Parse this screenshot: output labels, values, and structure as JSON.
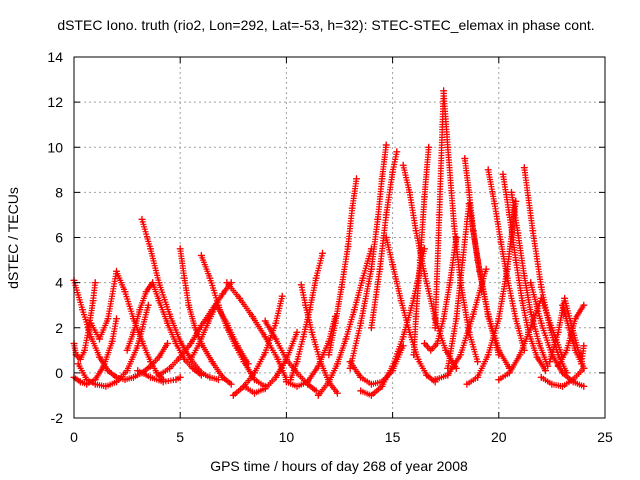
{
  "chart_data": {
    "type": "scatter",
    "title": "dSTEC Iono. truth (rio2, Lon=292, Lat=-53, h=32): STEC-STEC_elemax in phase cont.",
    "xlabel": "GPS time / hours of day 268 of year 2008",
    "ylabel": "dSTEC  / TECUs",
    "xlim": [
      0,
      25
    ],
    "ylim": [
      -2,
      14
    ],
    "xticks": [
      "0",
      "5",
      "10",
      "15",
      "20",
      "25"
    ],
    "yticks": [
      "-2",
      "0",
      "2",
      "4",
      "6",
      "8",
      "10",
      "12",
      "14"
    ],
    "grid": true,
    "marker": "plus",
    "color": "#ff0000",
    "series": [
      {
        "x": [
          0.0,
          0.4,
          0.8,
          1.2,
          1.6,
          2.0,
          2.4,
          2.8,
          3.2,
          3.6,
          4.0,
          4.4
        ],
        "y": [
          4.1,
          2.8,
          1.6,
          0.7,
          0.1,
          -0.2,
          -0.3,
          -0.2,
          0.0,
          0.3,
          0.7,
          1.3
        ]
      },
      {
        "x": [
          0.0,
          0.1,
          0.3,
          0.5,
          0.7,
          0.9,
          1.0
        ],
        "y": [
          1.3,
          0.8,
          0.6,
          1.0,
          2.0,
          3.2,
          4.0
        ]
      },
      {
        "x": [
          0.0,
          0.3,
          0.6,
          1.0,
          1.4,
          1.8,
          2.0
        ],
        "y": [
          -0.2,
          -0.4,
          -0.5,
          -0.3,
          0.3,
          1.4,
          2.4
        ]
      },
      {
        "x": [
          0.8,
          1.2,
          1.6,
          2.0,
          2.4,
          2.8,
          3.2,
          3.6,
          3.9,
          4.2
        ],
        "y": [
          2.2,
          1.5,
          2.4,
          4.5,
          3.6,
          2.4,
          1.4,
          0.5,
          0.0,
          -0.3
        ]
      },
      {
        "x": [
          0.2,
          0.6,
          1.0,
          1.5,
          2.0,
          2.5,
          3.0,
          3.5
        ],
        "y": [
          0.4,
          -0.3,
          -0.5,
          -0.6,
          -0.4,
          0.1,
          1.2,
          3.0
        ]
      },
      {
        "x": [
          2.5,
          2.8,
          3.1,
          3.4,
          3.7,
          4.0,
          4.4,
          4.8,
          5.2,
          5.6,
          6.0
        ],
        "y": [
          1.0,
          1.8,
          2.8,
          3.6,
          4.0,
          3.2,
          2.2,
          1.3,
          0.6,
          0.2,
          -0.1
        ]
      },
      {
        "x": [
          3.2,
          3.6,
          4.0,
          4.5,
          5.0,
          5.5,
          6.0,
          6.4,
          6.8
        ],
        "y": [
          6.8,
          5.5,
          4.0,
          2.6,
          1.4,
          0.6,
          0.0,
          -0.2,
          -0.3
        ]
      },
      {
        "x": [
          3.0,
          3.6,
          4.2,
          4.8,
          5.0
        ],
        "y": [
          0.1,
          -0.2,
          -0.4,
          -0.3,
          -0.2
        ]
      },
      {
        "x": [
          4.0,
          4.5,
          5.0,
          5.5,
          6.0,
          6.5,
          7.0,
          7.4
        ],
        "y": [
          -0.1,
          0.2,
          0.7,
          1.3,
          2.1,
          2.8,
          3.5,
          4.0
        ]
      },
      {
        "x": [
          5.0,
          5.2,
          5.4,
          5.7,
          6.0,
          6.5,
          7.0,
          7.4
        ],
        "y": [
          5.5,
          4.2,
          3.0,
          2.0,
          1.3,
          0.5,
          -0.2,
          -0.5
        ]
      },
      {
        "x": [
          5.5,
          5.9,
          6.3,
          6.7,
          7.2,
          7.7,
          8.2
        ],
        "y": [
          0.6,
          1.3,
          2.2,
          3.0,
          2.2,
          1.2,
          0.4
        ]
      },
      {
        "x": [
          6.0,
          6.4,
          6.8,
          7.2,
          7.6,
          8.0,
          8.5,
          9.0
        ],
        "y": [
          5.2,
          4.2,
          3.0,
          2.0,
          1.2,
          0.5,
          -0.3,
          -0.6
        ]
      },
      {
        "x": [
          7.5,
          8.0,
          8.5,
          9.0,
          9.5,
          9.8
        ],
        "y": [
          -1.0,
          -0.6,
          0.0,
          0.9,
          2.2,
          3.4
        ]
      },
      {
        "x": [
          7.2,
          7.8,
          8.4,
          9.0,
          9.6,
          10.0
        ],
        "y": [
          4.0,
          3.3,
          2.5,
          1.6,
          0.6,
          -0.3
        ]
      },
      {
        "x": [
          8.0,
          8.5,
          9.0,
          9.5,
          10.0,
          10.5
        ],
        "y": [
          -0.6,
          -0.9,
          -0.7,
          -0.2,
          0.6,
          1.8
        ]
      },
      {
        "x": [
          9.0,
          9.5,
          10.0,
          10.5,
          11.0,
          11.4
        ],
        "y": [
          2.3,
          1.5,
          0.6,
          0.0,
          -0.5,
          -0.8
        ]
      },
      {
        "x": [
          10.0,
          10.5,
          11.0,
          11.5,
          12.0,
          12.3
        ],
        "y": [
          -0.4,
          -0.6,
          -0.4,
          0.3,
          1.4,
          2.5
        ]
      },
      {
        "x": [
          10.7,
          10.9,
          11.2,
          11.6,
          12.0,
          12.4
        ],
        "y": [
          3.9,
          3.0,
          1.8,
          0.5,
          -0.4,
          -0.9
        ]
      },
      {
        "x": [
          10.2,
          10.5,
          10.8,
          11.1,
          11.4,
          11.7
        ],
        "y": [
          -0.3,
          0.5,
          1.6,
          2.8,
          4.2,
          5.3
        ]
      },
      {
        "x": [
          11.5,
          12.0,
          12.4,
          12.8,
          13.2,
          13.6,
          14.0
        ],
        "y": [
          -1.0,
          -0.4,
          0.4,
          1.5,
          2.8,
          4.2,
          5.5
        ]
      },
      {
        "x": [
          12.0,
          12.3,
          12.6,
          12.9,
          13.1,
          13.3
        ],
        "y": [
          0.8,
          2.2,
          3.8,
          5.6,
          7.3,
          8.6
        ]
      },
      {
        "x": [
          13.0,
          13.5,
          14.0,
          14.3,
          14.5,
          14.7
        ],
        "y": [
          0.2,
          2.2,
          4.6,
          6.8,
          8.6,
          10.1
        ]
      },
      {
        "x": [
          14.0,
          14.4,
          14.7,
          15.0,
          15.2
        ],
        "y": [
          2.0,
          4.6,
          7.0,
          8.9,
          9.8
        ]
      },
      {
        "x": [
          14.7,
          15.0,
          15.4,
          15.8,
          16.2,
          16.6,
          17.0
        ],
        "y": [
          6.0,
          4.8,
          3.2,
          1.8,
          0.6,
          -0.1,
          -0.4
        ]
      },
      {
        "x": [
          15.5,
          15.8,
          16.1,
          16.5,
          17.0,
          17.5,
          18.0
        ],
        "y": [
          9.2,
          8.0,
          6.3,
          4.4,
          2.4,
          1.0,
          0.2
        ]
      },
      {
        "x": [
          16.0,
          16.1,
          16.3,
          16.5,
          16.7
        ],
        "y": [
          0.8,
          2.5,
          5.0,
          7.8,
          10.0
        ]
      },
      {
        "x": [
          13.0,
          13.5,
          14.0,
          14.5,
          15.0,
          15.5
        ],
        "y": [
          0.5,
          -0.2,
          -0.5,
          -0.4,
          0.1,
          1.2
        ]
      },
      {
        "x": [
          13.5,
          14.0,
          14.5,
          15.0,
          15.5,
          16.0,
          16.5
        ],
        "y": [
          -0.8,
          -1.0,
          -0.6,
          0.3,
          1.6,
          3.3,
          5.5
        ]
      },
      {
        "x": [
          17.0,
          17.2,
          17.4,
          17.6,
          17.9,
          18.2,
          18.6,
          19.0
        ],
        "y": [
          2.0,
          7.0,
          12.5,
          10.0,
          6.5,
          4.0,
          1.8,
          0.5
        ]
      },
      {
        "x": [
          16.5,
          16.8,
          17.1,
          17.4,
          17.7,
          18.0
        ],
        "y": [
          1.3,
          1.0,
          1.3,
          2.4,
          4.0,
          6.0
        ]
      },
      {
        "x": [
          17.6,
          18.0,
          18.3,
          18.6,
          19.0,
          19.5,
          20.0
        ],
        "y": [
          0.2,
          2.4,
          5.0,
          7.5,
          5.0,
          2.5,
          0.8
        ]
      },
      {
        "x": [
          17.0,
          17.6,
          18.2,
          18.8,
          19.4
        ],
        "y": [
          -0.3,
          -0.1,
          0.8,
          2.6,
          4.6
        ]
      },
      {
        "x": [
          18.4,
          18.6,
          18.8,
          19.1,
          19.5,
          20.0,
          20.5
        ],
        "y": [
          9.5,
          8.0,
          6.3,
          4.5,
          2.6,
          1.0,
          0.2
        ]
      },
      {
        "x": [
          19.5,
          19.8,
          20.1,
          20.4,
          20.8,
          21.2
        ],
        "y": [
          9.0,
          7.5,
          5.8,
          4.2,
          2.4,
          1.0
        ]
      },
      {
        "x": [
          18.5,
          19.0,
          19.5,
          20.0,
          20.4,
          20.8
        ],
        "y": [
          -0.5,
          -0.2,
          0.8,
          2.4,
          4.6,
          7.6
        ]
      },
      {
        "x": [
          20.2,
          20.5,
          20.8,
          21.1,
          21.4,
          21.8,
          22.2
        ],
        "y": [
          8.8,
          7.0,
          5.0,
          3.2,
          1.8,
          0.7,
          0.1
        ]
      },
      {
        "x": [
          20.6,
          20.9,
          21.2,
          21.5,
          21.9,
          22.3
        ],
        "y": [
          8.0,
          6.2,
          4.3,
          2.7,
          1.3,
          0.3
        ]
      },
      {
        "x": [
          21.2,
          21.6,
          22.0,
          22.4,
          22.8,
          23.2
        ],
        "y": [
          9.1,
          6.3,
          3.8,
          2.0,
          0.8,
          0.0
        ]
      },
      {
        "x": [
          21.5,
          22.0,
          22.5,
          23.0,
          23.5,
          24.0
        ],
        "y": [
          4.0,
          2.2,
          0.8,
          0.0,
          -0.4,
          -0.6
        ]
      },
      {
        "x": [
          20.0,
          20.5,
          21.0,
          21.5,
          22.0,
          22.5,
          23.0
        ],
        "y": [
          -0.3,
          0.0,
          0.8,
          2.0,
          3.3,
          2.0,
          0.7
        ]
      },
      {
        "x": [
          22.0,
          22.5,
          23.0,
          23.5,
          24.0
        ],
        "y": [
          -0.2,
          -0.5,
          -0.6,
          -0.3,
          0.2
        ]
      },
      {
        "x": [
          22.4,
          22.8,
          23.1,
          23.4,
          23.8,
          24.0
        ],
        "y": [
          0.5,
          1.8,
          3.3,
          2.2,
          0.8,
          0.2
        ]
      },
      {
        "x": [
          22.8,
          23.2,
          23.6,
          24.0
        ],
        "y": [
          0.3,
          1.0,
          2.4,
          3.0
        ]
      },
      {
        "x": [
          23.0,
          23.3,
          23.6,
          23.9,
          24.0
        ],
        "y": [
          3.0,
          2.0,
          1.0,
          0.4,
          1.2
        ]
      }
    ]
  }
}
